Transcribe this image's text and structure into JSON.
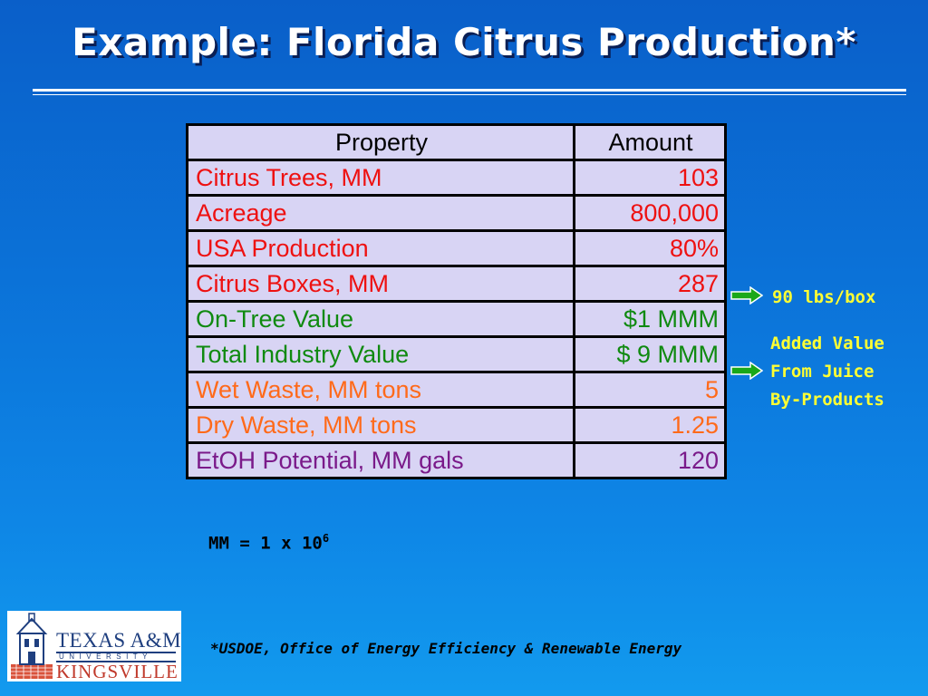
{
  "slide": {
    "title": "Example: Florida Citrus Production*"
  },
  "table": {
    "headers": {
      "property": "Property",
      "amount": "Amount"
    },
    "rows": [
      {
        "property": "Citrus Trees, MM",
        "amount": "103"
      },
      {
        "property": "Acreage",
        "amount": "800,000"
      },
      {
        "property": "USA Production",
        "amount": "80%"
      },
      {
        "property": "Citrus Boxes, MM",
        "amount": "287"
      },
      {
        "property": "On-Tree Value",
        "amount": "$1 MMM"
      },
      {
        "property": "Total Industry Value",
        "amount": "$ 9 MMM"
      },
      {
        "property": "Wet Waste, MM tons",
        "amount": "5"
      },
      {
        "property": "Dry Waste, MM tons",
        "amount": "1.25"
      },
      {
        "property": "EtOH Potential, MM gals",
        "amount": "120"
      }
    ]
  },
  "annotations": {
    "boxes_note": "90 lbs/box",
    "added_value": [
      "Added Value",
      "From Juice",
      "By-Products"
    ]
  },
  "definition": {
    "text": "MM = 1 x 10",
    "exponent": "6"
  },
  "footnote": "*USDOE, Office of Energy Efficiency & Renewable Energy",
  "logo": {
    "line1": "TEXAS A&M",
    "line2": "UNIVERSITY",
    "line3": "KINGSVILLE"
  },
  "colors": {
    "background": "#0b72d8",
    "title": "#ffffff",
    "table_fill": "#d8d4f4",
    "red_rows": "#ee1111",
    "green_rows": "#108a10",
    "orange_rows": "#ff6a1a",
    "purple_rows": "#7a1a8a",
    "note_text": "#ffff33",
    "arrow": "#1aa81a"
  },
  "icons": {
    "arrows": "right-arrow-icon",
    "logo": "university-logo"
  }
}
